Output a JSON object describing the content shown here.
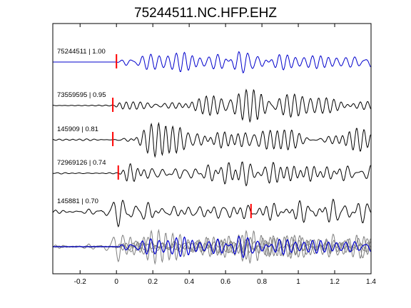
{
  "chart_data": {
    "type": "line",
    "title": "75244511.NC.HFP.EHZ",
    "xlabel": "",
    "ylabel": "",
    "xlim": [
      -0.35,
      1.4
    ],
    "x_ticks": [
      {
        "value": -0.2,
        "label": "-0.2"
      },
      {
        "value": 0,
        "label": "0"
      },
      {
        "value": 0.2,
        "label": "0.2"
      },
      {
        "value": 0.4,
        "label": "0.4"
      },
      {
        "value": 0.6,
        "label": "0.6"
      },
      {
        "value": 0.8,
        "label": "0.8"
      },
      {
        "value": 1.0,
        "label": "1"
      },
      {
        "value": 1.2,
        "label": "1.2"
      },
      {
        "value": 1.4,
        "label": "1.4"
      }
    ],
    "grid": false,
    "legend": "none",
    "colors": {
      "master_trace": "#0000cc",
      "traces": "#000000",
      "stack_gray": "#808080",
      "pick": "#ff0000"
    },
    "series": [
      {
        "label": "75244511 | 1.00",
        "id": "75244511",
        "correlation": 1.0,
        "pick_time": 0.0,
        "color": "#0000cc",
        "seed": 11
      },
      {
        "label": "73559595 | 0.95",
        "id": "73559595",
        "correlation": 0.95,
        "pick_time": -0.02,
        "color": "#000000",
        "seed": 23
      },
      {
        "label": "145909 | 0.81",
        "id": "145909",
        "correlation": 0.81,
        "pick_time": -0.02,
        "color": "#000000",
        "seed": 37
      },
      {
        "label": "72969126 | 0.74",
        "id": "72969126",
        "correlation": 0.74,
        "pick_time": 0.01,
        "color": "#000000",
        "seed": 41
      },
      {
        "label": "145881 | 0.70",
        "id": "145881",
        "correlation": 0.7,
        "pick_time": 0.74,
        "color": "#000000",
        "seed": 53
      }
    ],
    "stack": {
      "description_visible": false,
      "color_master": "#0000cc",
      "color_others": "#808080"
    }
  }
}
